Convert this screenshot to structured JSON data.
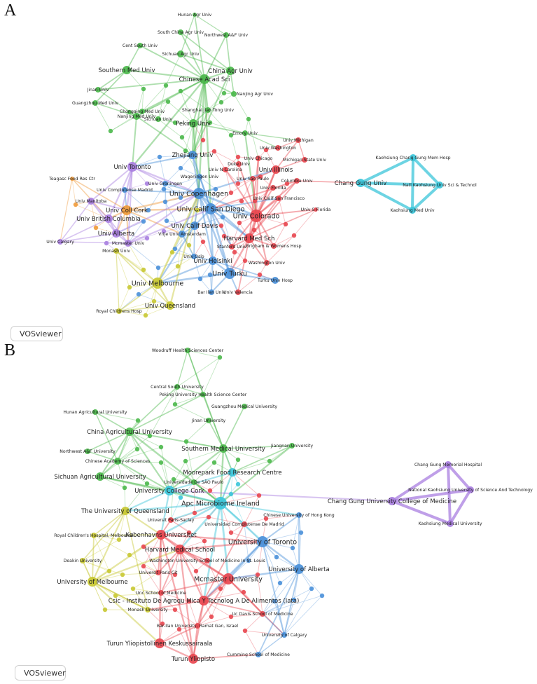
{
  "panels": [
    {
      "letter": "A",
      "brand": "VOSviewer",
      "nodes": [
        {
          "id": "hunan",
          "label": "Hunan Agr Univ",
          "cluster": "green"
        },
        {
          "id": "southchina",
          "label": "South China Agr Univ",
          "cluster": "green"
        },
        {
          "id": "nwaf",
          "label": "Northwest A&F Univ",
          "cluster": "green"
        },
        {
          "id": "centsouth",
          "label": "Cent South Univ",
          "cluster": "green"
        },
        {
          "id": "sichuanagr",
          "label": "Sichuan Agr Univ",
          "cluster": "green"
        },
        {
          "id": "southernmed",
          "label": "Southern Med Univ",
          "cluster": "green"
        },
        {
          "id": "chinaagr",
          "label": "China Agr Univ",
          "cluster": "green"
        },
        {
          "id": "cas",
          "label": "Chinese Acad Sci",
          "cluster": "green"
        },
        {
          "id": "jinan",
          "label": "Jinan Univ",
          "cluster": "green"
        },
        {
          "id": "nanjingagr",
          "label": "Nanjing Agr Univ",
          "cluster": "green"
        },
        {
          "id": "guangzhoumed",
          "label": "Guangzhou Med Univ",
          "cluster": "green"
        },
        {
          "id": "chongqing",
          "label": "Chongqing Med Univ",
          "cluster": "green"
        },
        {
          "id": "shanghaijt",
          "label": "Shanghai Jiao Tong Univ",
          "cluster": "green"
        },
        {
          "id": "sichuan",
          "label": "Sichuan Univ",
          "cluster": "green"
        },
        {
          "id": "peking",
          "label": "Peking Univ",
          "cluster": "green"
        },
        {
          "id": "nanjingmed",
          "label": "Nanjing Med Univ",
          "cluster": "green"
        },
        {
          "id": "emory",
          "label": "Emory Univ",
          "cluster": "green"
        },
        {
          "id": "umich",
          "label": "Univ Michigan",
          "cluster": "red"
        },
        {
          "id": "uwash",
          "label": "Univ Washington",
          "cluster": "red"
        },
        {
          "id": "zhejiang",
          "label": "Zhejiang Univ",
          "cluster": "blue"
        },
        {
          "id": "uchicago",
          "label": "Univ Chicago",
          "cluster": "red"
        },
        {
          "id": "michstate",
          "label": "Michigan State Univ",
          "cluster": "red"
        },
        {
          "id": "toronto",
          "label": "Univ Toronto",
          "cluster": "purple"
        },
        {
          "id": "uncarolina",
          "label": "Univ N Carolina",
          "cluster": "red"
        },
        {
          "id": "duke",
          "label": "Duke Univ",
          "cluster": "red"
        },
        {
          "id": "illinois",
          "label": "Univ Illinois",
          "cluster": "red"
        },
        {
          "id": "teagasc",
          "label": "Teagasc Food Res Ctr",
          "cluster": "orange"
        },
        {
          "id": "groningen",
          "label": "Univ Groningen",
          "cluster": "blue"
        },
        {
          "id": "wageningen",
          "label": "Wageningen Univ",
          "cluster": "blue"
        },
        {
          "id": "saopaulo",
          "label": "Univ Sao Paulo",
          "cluster": "red"
        },
        {
          "id": "columbia",
          "label": "Columbia Univ",
          "cluster": "red"
        },
        {
          "id": "complutense",
          "label": "Univ Complutense Madrid",
          "cluster": "blue"
        },
        {
          "id": "copenhagen",
          "label": "Univ Copenhagen",
          "cluster": "blue"
        },
        {
          "id": "uflorida",
          "label": "Univ Florida",
          "cluster": "red"
        },
        {
          "id": "ucsf",
          "label": "Univ Calif San Francisco",
          "cluster": "red"
        },
        {
          "id": "manitoba",
          "label": "Univ Manitoba",
          "cluster": "purple"
        },
        {
          "id": "collcork",
          "label": "Univ Coll Cork",
          "cluster": "orange"
        },
        {
          "id": "ucsd",
          "label": "Univ Calif San Diego",
          "cluster": "blue"
        },
        {
          "id": "usflorida",
          "label": "Univ S Florida",
          "cluster": "red"
        },
        {
          "id": "colorado",
          "label": "Univ Colorado",
          "cluster": "red"
        },
        {
          "id": "ubc",
          "label": "Univ British Columbia",
          "cluster": "purple"
        },
        {
          "id": "ucdavis",
          "label": "Univ Calif Davis",
          "cluster": "blue"
        },
        {
          "id": "alberta",
          "label": "Univ Alberta",
          "cluster": "purple"
        },
        {
          "id": "vrije",
          "label": "Vrije Univ Amsterdam",
          "cluster": "blue"
        },
        {
          "id": "harvardmed",
          "label": "Harvard Med Sch",
          "cluster": "red"
        },
        {
          "id": "mcmaster",
          "label": "Mcmaster Univ",
          "cluster": "purple"
        },
        {
          "id": "brigham",
          "label": "Brigham & Womens Hosp",
          "cluster": "red"
        },
        {
          "id": "calgary",
          "label": "Univ Calgary",
          "cluster": "purple"
        },
        {
          "id": "stanford",
          "label": "Stanford Univ",
          "cluster": "red"
        },
        {
          "id": "monash",
          "label": "Monash Univ",
          "cluster": "yellow"
        },
        {
          "id": "oslo",
          "label": "Univ Oslo",
          "cluster": "blue"
        },
        {
          "id": "helsinki",
          "label": "Univ Helsinki",
          "cluster": "blue"
        },
        {
          "id": "washingtonu",
          "label": "Washington Univ",
          "cluster": "red"
        },
        {
          "id": "turku",
          "label": "Univ Turku",
          "cluster": "blue"
        },
        {
          "id": "melbourne",
          "label": "Univ Melbourne",
          "cluster": "yellow"
        },
        {
          "id": "turkuhosp",
          "label": "Turku Univ Hosp",
          "cluster": "blue"
        },
        {
          "id": "barilan",
          "label": "Bar Ilan Univ",
          "cluster": "blue"
        },
        {
          "id": "valencia",
          "label": "Univ Valencia",
          "cluster": "red"
        },
        {
          "id": "queensland",
          "label": "Univ Queensland",
          "cluster": "yellow"
        },
        {
          "id": "royalchild",
          "label": "Royal Childrens Hosp",
          "cluster": "yellow"
        },
        {
          "id": "kcgmh",
          "label": "Kaohsiung Chang Gung Mem Hosp",
          "cluster": "cyan"
        },
        {
          "id": "changgung",
          "label": "Chang Gung Univ",
          "cluster": "cyan"
        },
        {
          "id": "nkust",
          "label": "Natl Kaohsiung Univ Sci & Technol",
          "cluster": "cyan"
        },
        {
          "id": "kmu",
          "label": "Kaohsiung Med Univ",
          "cluster": "cyan"
        }
      ]
    },
    {
      "letter": "B",
      "brand": "VOSviewer",
      "nodes": [
        {
          "id": "woodruff",
          "label": "Woodruff Health Sciences Center",
          "cluster": "green"
        },
        {
          "id": "csu",
          "label": "Central South University",
          "cluster": "green"
        },
        {
          "id": "pkuhsc",
          "label": "Peking University Health Science Center",
          "cluster": "green"
        },
        {
          "id": "gzmu",
          "label": "Guangzhou Medical University",
          "cluster": "green"
        },
        {
          "id": "hunanau",
          "label": "Hunan Agricultural University",
          "cluster": "green"
        },
        {
          "id": "jinanu",
          "label": "Jinan University",
          "cluster": "green"
        },
        {
          "id": "cau",
          "label": "China Agricultural University",
          "cluster": "green"
        },
        {
          "id": "smu",
          "label": "Southern Medical University",
          "cluster": "green"
        },
        {
          "id": "jiangnan",
          "label": "Jiangnan University",
          "cluster": "green"
        },
        {
          "id": "nwafu",
          "label": "Northwest A&F University",
          "cluster": "green"
        },
        {
          "id": "casb",
          "label": "Chinese Academy of Sciences",
          "cluster": "green"
        },
        {
          "id": "moorepark",
          "label": "Moorepark Food Research Centre",
          "cluster": "cyan"
        },
        {
          "id": "sau",
          "label": "Sichuan Agricultural University",
          "cluster": "green"
        },
        {
          "id": "usp",
          "label": "Universidade De SÃO Paulo",
          "cluster": "green"
        },
        {
          "id": "ucc",
          "label": "University College Cork",
          "cluster": "cyan"
        },
        {
          "id": "apc",
          "label": "Apc Microbiome Ireland",
          "cluster": "cyan"
        },
        {
          "id": "uq",
          "label": "The University of Queensland",
          "cluster": "yellow"
        },
        {
          "id": "hkcu",
          "label": "Chinese University of Hong Kong",
          "cluster": "blue"
        },
        {
          "id": "saclay",
          "label": "Universit  Paris-Saclay",
          "cluster": "red"
        },
        {
          "id": "ucm",
          "label": "Universidad Complutense De Madrid",
          "cluster": "red"
        },
        {
          "id": "royalmelb",
          "label": "Royal Children's Hospital, Melbourne",
          "cluster": "yellow"
        },
        {
          "id": "kobenhavn",
          "label": "Københavns Universitet",
          "cluster": "red"
        },
        {
          "id": "uoft",
          "label": "University of Toronto",
          "cluster": "blue"
        },
        {
          "id": "hms",
          "label": "Harvard Medical School",
          "cluster": "red"
        },
        {
          "id": "deakin",
          "label": "Deakin University",
          "cluster": "yellow"
        },
        {
          "id": "wustl",
          "label": "Washington University School of Medicine In St. Louis",
          "cluster": "red"
        },
        {
          "id": "ualberta",
          "label": "University of Alberta",
          "cluster": "blue"
        },
        {
          "id": "umelb",
          "label": "University of Melbourne",
          "cluster": "yellow"
        },
        {
          "id": "paris",
          "label": "Universit  Paris Cit",
          "cluster": "red"
        },
        {
          "id": "mcmasterb",
          "label": "Mcmaster University",
          "cluster": "red"
        },
        {
          "id": "unc",
          "label": "Unc School of Medicine",
          "cluster": "red"
        },
        {
          "id": "csic",
          "label": "Csic - Instituto De Agroqu  Mica Y Tecnolog  A De Alimentos (Iata)",
          "cluster": "red"
        },
        {
          "id": "ucdavisb",
          "label": "Uc Davis School of Medicine",
          "cluster": "red"
        },
        {
          "id": "monashb",
          "label": "Monash University",
          "cluster": "yellow"
        },
        {
          "id": "barilanb",
          "label": "Bar-Ilan University, Ramat Gan, Israel",
          "cluster": "red"
        },
        {
          "id": "ucalgary",
          "label": "University of Calgary",
          "cluster": "blue"
        },
        {
          "id": "tyks",
          "label": "Turun Yliopistollinen Keskussairaala",
          "cluster": "red"
        },
        {
          "id": "cumming",
          "label": "Cumming School of Medicine",
          "cluster": "blue"
        },
        {
          "id": "turunyo",
          "label": "Turun Yliopisto",
          "cluster": "red"
        },
        {
          "id": "cgmh",
          "label": "Chang Gung Memorial Hospital",
          "cluster": "purple"
        },
        {
          "id": "nkustb",
          "label": "National Kaohsiung University of Science And Technology",
          "cluster": "purple"
        },
        {
          "id": "cgucm",
          "label": "Chang Gung University College of Medicine",
          "cluster": "purple"
        },
        {
          "id": "kmub",
          "label": "Kaohsiung Medical University",
          "cluster": "purple"
        }
      ]
    }
  ],
  "colors": {
    "green": "#4bb84b",
    "red": "#e8464f",
    "blue": "#4a90d9",
    "purple": "#a97fe0",
    "yellow": "#c8c832",
    "orange": "#ef9a3a",
    "cyan": "#3cc6da",
    "text": "#222222"
  }
}
